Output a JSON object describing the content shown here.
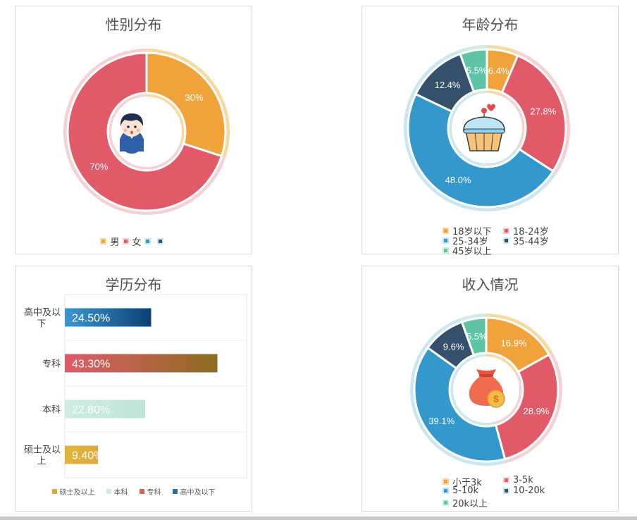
{
  "gender": {
    "title": "性别分布",
    "legend": [
      "男",
      "女",
      "",
      ""
    ]
  },
  "age": {
    "title": "年龄分布",
    "legend": [
      "18岁以下",
      "18-24岁",
      "25-34岁",
      "35-44岁",
      "45岁以上"
    ]
  },
  "education": {
    "title": "学历分布",
    "legend": [
      "硕士及以上",
      "本科",
      "专科",
      "高中及以下"
    ]
  },
  "income": {
    "title": "收入情况",
    "legend": [
      "小于3k",
      "3-5k",
      "5-10k",
      "10-20k",
      "20k以上"
    ]
  },
  "chart_data": [
    {
      "type": "pie",
      "title": "性别分布",
      "donut": true,
      "center_icon": "boy-avatar-icon",
      "slices": [
        {
          "name": "男",
          "value": 30,
          "label": "30%",
          "color": "#F0A23B",
          "halo": "#F7D9A0"
        },
        {
          "name": "女",
          "value": 70,
          "label": "70%",
          "color": "#E05A68",
          "halo": "#F5D0D5"
        }
      ],
      "legend_position": "bottom"
    },
    {
      "type": "pie",
      "title": "年龄分布",
      "donut": true,
      "center_icon": "cupcake-icon",
      "slices": [
        {
          "name": "18岁以下",
          "value": 6.4,
          "label": "6.4%",
          "color": "#F0A23B",
          "halo": "#F7D9A0"
        },
        {
          "name": "18-24岁",
          "value": 27.8,
          "label": "27.8%",
          "color": "#E05A68",
          "halo": "#F5D0D5"
        },
        {
          "name": "25-34岁",
          "value": 48.0,
          "label": "48.0%",
          "color": "#3399CC",
          "halo": "#C9E6F2"
        },
        {
          "name": "35-44岁",
          "value": 12.4,
          "label": "12.4%",
          "color": "#34506B",
          "halo": "#C9E6F2"
        },
        {
          "name": "45岁以上",
          "value": 5.5,
          "label": "5.5%",
          "color": "#5FC4A6",
          "halo": "#CDEDE3"
        }
      ],
      "legend_position": "bottom"
    },
    {
      "type": "bar",
      "orientation": "horizontal",
      "title": "学历分布",
      "categories": [
        "高中及以下",
        "专科",
        "本科",
        "硕士及以上"
      ],
      "values": [
        24.5,
        43.3,
        22.8,
        9.4
      ],
      "labels": [
        "24.50%",
        "43.30%",
        "22.80%",
        "9.40%"
      ],
      "xlim": [
        0,
        50
      ],
      "grid": true,
      "colors": [
        [
          "#3B97CF",
          "#0D3F73"
        ],
        [
          "#E05A68",
          "#8C6D20"
        ],
        [
          "#CDECE4",
          "#BFE4D9"
        ],
        [
          "#E0B63A",
          "#E0A83A"
        ]
      ],
      "legend_position": "bottom"
    },
    {
      "type": "pie",
      "title": "收入情况",
      "donut": true,
      "center_icon": "money-bag-icon",
      "slices": [
        {
          "name": "小于3k",
          "value": 16.9,
          "label": "16.9%",
          "color": "#F0A23B",
          "halo": "#F7D9A0"
        },
        {
          "name": "3-5k",
          "value": 28.9,
          "label": "28.9%",
          "color": "#E05A68",
          "halo": "#F5D0D5"
        },
        {
          "name": "5-10k",
          "value": 39.1,
          "label": "39.1%",
          "color": "#3399CC",
          "halo": "#C9E6F2"
        },
        {
          "name": "10-20k",
          "value": 9.6,
          "label": "9.6%",
          "color": "#34506B",
          "halo": "#C9E6F2"
        },
        {
          "name": "20k以上",
          "value": 5.5,
          "label": "5.5%",
          "color": "#5FC4A6",
          "halo": "#CDEDE3"
        }
      ],
      "legend_position": "bottom"
    }
  ]
}
